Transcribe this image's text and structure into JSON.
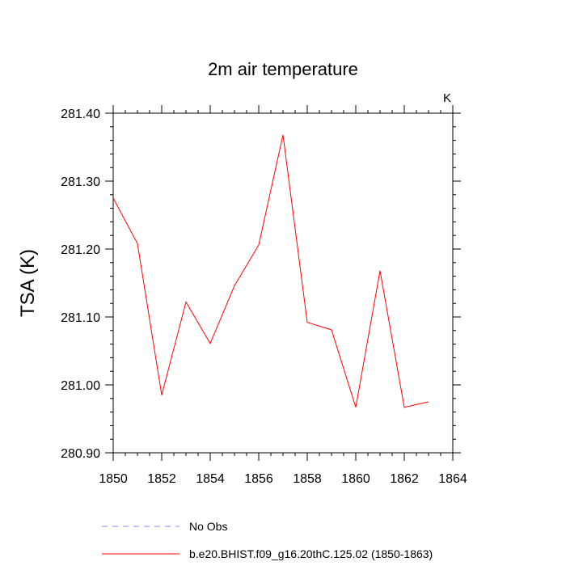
{
  "chart_data": {
    "type": "line",
    "title": "2m air temperature",
    "units": "K",
    "xlabel": "",
    "ylabel": "TSA  (K)",
    "xlim": [
      1850,
      1864
    ],
    "ylim": [
      280.9,
      281.4
    ],
    "xticks": [
      1850,
      1852,
      1854,
      1856,
      1858,
      1860,
      1862,
      1864
    ],
    "xtick_labels": [
      "1850",
      "1852",
      "1854",
      "1856",
      "1858",
      "1860",
      "1862",
      "1864"
    ],
    "yticks": [
      280.9,
      281.0,
      281.1,
      281.2,
      281.3,
      281.4
    ],
    "ytick_labels": [
      "280.90",
      "281.00",
      "281.10",
      "281.20",
      "281.30",
      "281.40"
    ],
    "series": [
      {
        "name": "b.e20.BHIST.f09_g16.20thC.125.02 (1850-1863)",
        "color": "#ff0000",
        "style": "solid",
        "x": [
          1850,
          1851,
          1852,
          1853,
          1854,
          1855,
          1856,
          1857,
          1858,
          1859,
          1860,
          1861,
          1862,
          1863
        ],
        "values": [
          281.275,
          281.208,
          280.985,
          281.122,
          281.061,
          281.146,
          281.206,
          281.368,
          281.092,
          281.081,
          280.967,
          281.168,
          280.967,
          280.975
        ]
      }
    ],
    "legend": [
      {
        "label": "No Obs",
        "color": "#8a8af0",
        "style": "dashed"
      },
      {
        "label": "b.e20.BHIST.f09_g16.20thC.125.02 (1850-1863)",
        "color": "#ff0000",
        "style": "solid"
      }
    ]
  }
}
